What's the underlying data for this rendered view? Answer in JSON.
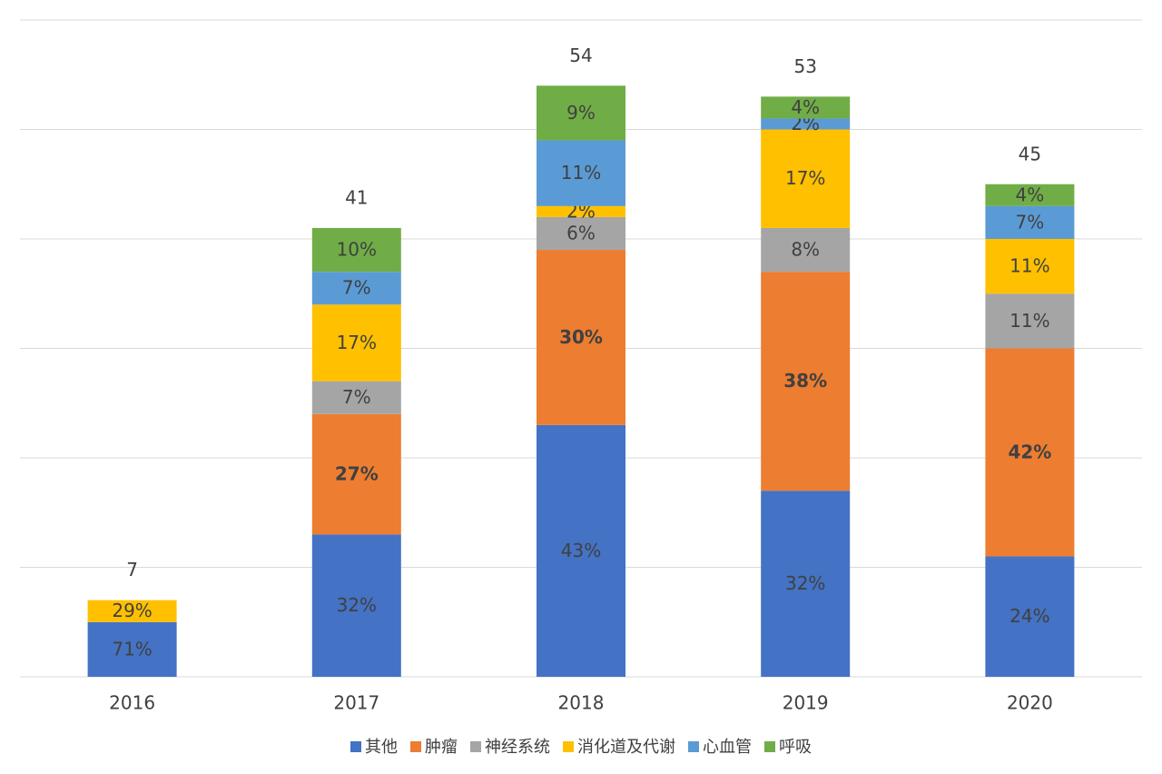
{
  "chart_data": {
    "type": "stacked_bar",
    "categories": [
      "2016",
      "2017",
      "2018",
      "2019",
      "2020"
    ],
    "series": [
      {
        "name": "其他",
        "color": "#4472c4",
        "values": [
          5,
          13,
          23,
          17,
          11
        ],
        "value_labels": [
          "71%",
          "32%",
          "43%",
          "32%",
          "24%"
        ]
      },
      {
        "name": "肿瘤",
        "color": "#ed7d31",
        "values": [
          null,
          11,
          16,
          20,
          19
        ],
        "value_labels": [
          null,
          "27%",
          "30%",
          "38%",
          "42%"
        ]
      },
      {
        "name": "神经系统",
        "color": "#a5a5a5",
        "values": [
          null,
          3,
          3,
          4,
          5
        ],
        "value_labels": [
          null,
          "7%",
          "6%",
          "8%",
          "11%"
        ]
      },
      {
        "name": "消化道及代谢",
        "color": "#ffc000",
        "values": [
          2,
          7,
          1,
          9,
          5
        ],
        "value_labels": [
          "29%",
          "17%",
          "2%",
          "17%",
          "11%"
        ]
      },
      {
        "name": "心血管",
        "color": "#5b9bd5",
        "values": [
          null,
          3,
          6,
          1,
          3
        ],
        "value_labels": [
          null,
          "7%",
          "11%",
          "2%",
          "7%"
        ]
      },
      {
        "name": "呼吸",
        "color": "#70ad47",
        "values": [
          null,
          4,
          5,
          2,
          2
        ],
        "value_labels": [
          null,
          "10%",
          "9%",
          "4%",
          "4%"
        ]
      }
    ],
    "totals": [
      7,
      41,
      54,
      53,
      45
    ],
    "ylim": [
      0,
      60
    ],
    "yticks": [
      0,
      10,
      20,
      30,
      40,
      50,
      60
    ],
    "grid": true,
    "legend": "bottom"
  }
}
